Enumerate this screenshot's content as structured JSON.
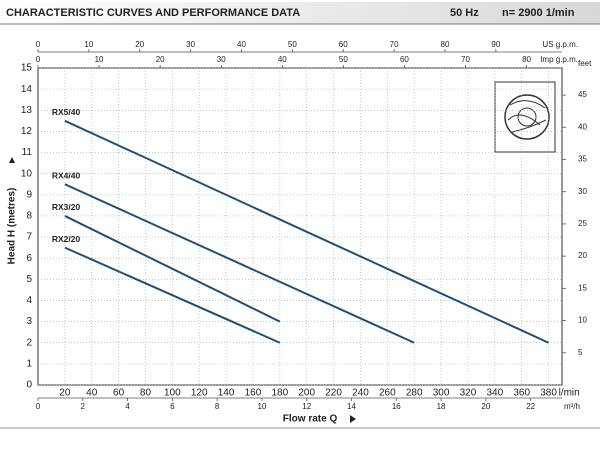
{
  "chart_data": {
    "type": "line",
    "title": "CHARACTERISTIC CURVES AND PERFORMANCE DATA",
    "frequency": "50 Hz",
    "speed": "n= 2900  1/min",
    "xlabel": "Flow rate  Q",
    "xunit": "l/min",
    "ylabel": "Head H (metres)",
    "xlim": [
      0,
      390
    ],
    "xticks": [
      20,
      40,
      60,
      80,
      100,
      120,
      140,
      160,
      180,
      200,
      220,
      240,
      260,
      280,
      300,
      320,
      340,
      360,
      380
    ],
    "ylim": [
      0,
      15
    ],
    "yticks": [
      0,
      1,
      2,
      3,
      4,
      5,
      6,
      7,
      8,
      9,
      10,
      11,
      12,
      13,
      14,
      15
    ],
    "y2label": "feet",
    "y2lim": [
      0,
      49.2
    ],
    "y2ticks": [
      5,
      10,
      15,
      20,
      25,
      30,
      35,
      40,
      45
    ],
    "grid": true,
    "top_axes": [
      {
        "label": "US g.p.m.",
        "lim": [
          0,
          103
        ],
        "ticks": [
          0,
          10,
          20,
          30,
          40,
          50,
          60,
          70,
          80,
          90
        ]
      },
      {
        "label": "Imp g.p.m.",
        "lim": [
          0,
          85.8
        ],
        "ticks": [
          0,
          10,
          20,
          30,
          40,
          50,
          60,
          70,
          80
        ]
      }
    ],
    "bottom_axis2": {
      "label": "m³/h",
      "lim": [
        0,
        23.4
      ],
      "ticks": [
        0,
        2,
        4,
        6,
        8,
        10,
        12,
        14,
        16,
        18,
        20,
        22
      ]
    },
    "series": [
      {
        "name": "RX5/40",
        "color": "#1f4e79",
        "x": [
          20,
          380
        ],
        "values": [
          12.5,
          2
        ]
      },
      {
        "name": "RX4/40",
        "color": "#1f4e79",
        "x": [
          20,
          280
        ],
        "values": [
          9.5,
          2
        ]
      },
      {
        "name": "RX3/20",
        "color": "#1f4e79",
        "x": [
          20,
          180
        ],
        "values": [
          8,
          3
        ]
      },
      {
        "name": "RX2/20",
        "color": "#1f4e79",
        "x": [
          20,
          180
        ],
        "values": [
          6.5,
          2
        ]
      }
    ]
  }
}
